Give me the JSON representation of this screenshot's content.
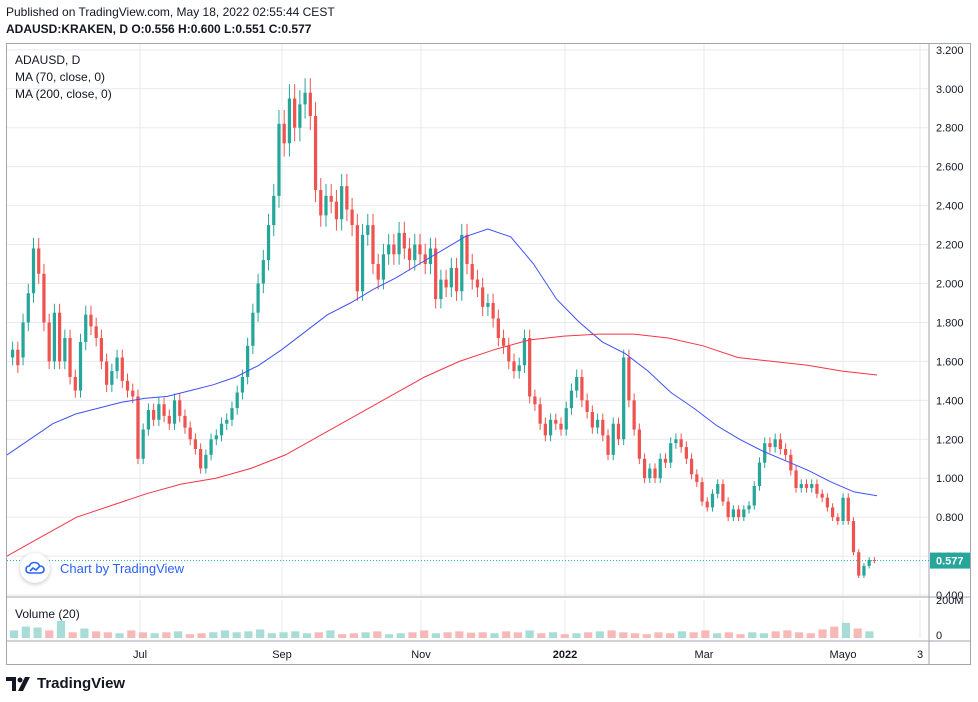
{
  "header": {
    "published": "Published on TradingView.com, May 18, 2022 02:55:44 CEST",
    "ohlc": "ADAUSD:KRAKEN, D O:0.556 H:0.600 L:0.551 C:0.577"
  },
  "legend": {
    "symbol": "ADAUSD, D",
    "ma70": "MA (70, close, 0)",
    "ma200": "MA (200, close, 0)"
  },
  "volume_pane": {
    "label": "Volume (20)",
    "axis_top": "200M",
    "axis_bottom": "0"
  },
  "watermark": {
    "text": "Chart by TradingView"
  },
  "footer": {
    "brand": "TradingView"
  },
  "colors": {
    "up": "#26a69a",
    "down": "#ef5350",
    "ma70": "#3f51f5",
    "ma200": "#f23645",
    "price_tag": "#26a69a"
  },
  "chart_data": {
    "type": "candlestick",
    "symbol": "ADAUSD",
    "interval": "D",
    "y_axis": {
      "ticks": [
        "0.400",
        "0.600",
        "0.800",
        "1.000",
        "1.200",
        "1.400",
        "1.600",
        "1.800",
        "2.000",
        "2.200",
        "2.400",
        "2.600",
        "2.800",
        "3.000",
        "3.200"
      ],
      "range": [
        0.39,
        3.23
      ]
    },
    "x_axis": {
      "ticks": [
        "Jul",
        "Sep",
        "Nov",
        "2022",
        "Mar",
        "Mayo",
        "3"
      ]
    },
    "last_price": {
      "label": "0.577",
      "value": 0.577
    },
    "candles": [
      [
        1.62,
        1.66
      ],
      [
        1.66,
        1.58
      ],
      [
        1.62,
        1.8
      ],
      [
        1.8,
        1.95
      ],
      [
        1.95,
        2.18
      ],
      [
        2.18,
        2.05
      ],
      [
        2.05,
        1.8
      ],
      [
        1.8,
        1.6
      ],
      [
        1.6,
        1.85
      ],
      [
        1.85,
        1.6
      ],
      [
        1.6,
        1.72
      ],
      [
        1.72,
        1.52
      ],
      [
        1.52,
        1.45
      ],
      [
        1.45,
        1.7
      ],
      [
        1.7,
        1.84
      ],
      [
        1.84,
        1.78
      ],
      [
        1.78,
        1.72
      ],
      [
        1.72,
        1.6
      ],
      [
        1.6,
        1.48
      ],
      [
        1.48,
        1.55
      ],
      [
        1.55,
        1.62
      ],
      [
        1.62,
        1.5
      ],
      [
        1.5,
        1.45
      ],
      [
        1.45,
        1.42
      ],
      [
        1.42,
        1.1
      ],
      [
        1.1,
        1.25
      ],
      [
        1.25,
        1.35
      ],
      [
        1.35,
        1.3
      ],
      [
        1.3,
        1.38
      ],
      [
        1.38,
        1.32
      ],
      [
        1.32,
        1.28
      ],
      [
        1.28,
        1.4
      ],
      [
        1.4,
        1.32
      ],
      [
        1.32,
        1.26
      ],
      [
        1.26,
        1.2
      ],
      [
        1.2,
        1.15
      ],
      [
        1.15,
        1.05
      ],
      [
        1.05,
        1.12
      ],
      [
        1.12,
        1.2
      ],
      [
        1.2,
        1.22
      ],
      [
        1.22,
        1.28
      ],
      [
        1.28,
        1.3
      ],
      [
        1.3,
        1.36
      ],
      [
        1.36,
        1.44
      ],
      [
        1.44,
        1.52
      ],
      [
        1.52,
        1.68
      ],
      [
        1.68,
        1.85
      ],
      [
        1.85,
        2.0
      ],
      [
        2.0,
        2.12
      ],
      [
        2.12,
        2.3
      ],
      [
        2.3,
        2.45
      ],
      [
        2.45,
        2.82
      ],
      [
        2.82,
        2.72
      ],
      [
        2.72,
        2.95
      ],
      [
        2.95,
        2.8
      ],
      [
        2.8,
        2.92
      ],
      [
        2.92,
        2.98
      ],
      [
        2.98,
        2.86
      ],
      [
        2.86,
        2.48
      ],
      [
        2.48,
        2.35
      ],
      [
        2.35,
        2.45
      ],
      [
        2.45,
        2.42
      ],
      [
        2.42,
        2.33
      ],
      [
        2.33,
        2.5
      ],
      [
        2.5,
        2.38
      ],
      [
        2.38,
        2.3
      ],
      [
        2.3,
        1.96
      ],
      [
        1.96,
        2.25
      ],
      [
        2.25,
        2.3
      ],
      [
        2.3,
        2.1
      ],
      [
        2.1,
        2.02
      ],
      [
        2.02,
        2.15
      ],
      [
        2.15,
        2.2
      ],
      [
        2.2,
        2.15
      ],
      [
        2.15,
        2.26
      ],
      [
        2.26,
        2.18
      ],
      [
        2.18,
        2.12
      ],
      [
        2.12,
        2.2
      ],
      [
        2.2,
        2.15
      ],
      [
        2.15,
        2.1
      ],
      [
        2.1,
        2.18
      ],
      [
        2.18,
        1.92
      ],
      [
        1.92,
        2.02
      ],
      [
        2.02,
        1.98
      ],
      [
        1.98,
        2.08
      ],
      [
        2.08,
        1.96
      ],
      [
        1.96,
        2.25
      ],
      [
        2.25,
        2.1
      ],
      [
        2.1,
        2.02
      ],
      [
        2.02,
        1.98
      ],
      [
        1.98,
        1.88
      ],
      [
        1.88,
        1.9
      ],
      [
        1.9,
        1.82
      ],
      [
        1.82,
        1.72
      ],
      [
        1.72,
        1.68
      ],
      [
        1.68,
        1.6
      ],
      [
        1.6,
        1.55
      ],
      [
        1.55,
        1.58
      ],
      [
        1.58,
        1.72
      ],
      [
        1.72,
        1.42
      ],
      [
        1.42,
        1.38
      ],
      [
        1.38,
        1.28
      ],
      [
        1.28,
        1.22
      ],
      [
        1.22,
        1.3
      ],
      [
        1.3,
        1.28
      ],
      [
        1.28,
        1.25
      ],
      [
        1.25,
        1.36
      ],
      [
        1.36,
        1.45
      ],
      [
        1.45,
        1.52
      ],
      [
        1.52,
        1.4
      ],
      [
        1.4,
        1.34
      ],
      [
        1.34,
        1.26
      ],
      [
        1.26,
        1.3
      ],
      [
        1.3,
        1.22
      ],
      [
        1.22,
        1.12
      ],
      [
        1.12,
        1.28
      ],
      [
        1.28,
        1.2
      ],
      [
        1.2,
        1.62
      ],
      [
        1.62,
        1.4
      ],
      [
        1.4,
        1.25
      ],
      [
        1.25,
        1.1
      ],
      [
        1.1,
        1.0
      ],
      [
        1.0,
        1.05
      ],
      [
        1.05,
        1.0
      ],
      [
        1.0,
        1.1
      ],
      [
        1.1,
        1.08
      ],
      [
        1.08,
        1.18
      ],
      [
        1.18,
        1.2
      ],
      [
        1.2,
        1.16
      ],
      [
        1.16,
        1.1
      ],
      [
        1.1,
        1.02
      ],
      [
        1.02,
        0.98
      ],
      [
        0.98,
        0.88
      ],
      [
        0.88,
        0.85
      ],
      [
        0.85,
        0.92
      ],
      [
        0.92,
        0.97
      ],
      [
        0.97,
        0.88
      ],
      [
        0.88,
        0.8
      ],
      [
        0.8,
        0.84
      ],
      [
        0.84,
        0.8
      ],
      [
        0.8,
        0.84
      ],
      [
        0.84,
        0.86
      ],
      [
        0.86,
        0.96
      ],
      [
        0.96,
        1.08
      ],
      [
        1.08,
        1.18
      ],
      [
        1.18,
        1.16
      ],
      [
        1.16,
        1.2
      ],
      [
        1.2,
        1.15
      ],
      [
        1.15,
        1.12
      ],
      [
        1.12,
        1.04
      ],
      [
        1.04,
        0.95
      ],
      [
        0.95,
        0.97
      ],
      [
        0.97,
        0.95
      ],
      [
        0.95,
        0.97
      ],
      [
        0.97,
        0.92
      ],
      [
        0.92,
        0.9
      ],
      [
        0.9,
        0.85
      ],
      [
        0.85,
        0.8
      ],
      [
        0.8,
        0.78
      ],
      [
        0.78,
        0.9
      ],
      [
        0.9,
        0.78
      ],
      [
        0.78,
        0.62
      ],
      [
        0.62,
        0.5
      ],
      [
        0.5,
        0.55
      ],
      [
        0.55,
        0.58
      ],
      [
        0.58,
        0.577
      ]
    ],
    "ma70": [
      1.12,
      1.2,
      1.28,
      1.33,
      1.36,
      1.39,
      1.41,
      1.42,
      1.45,
      1.48,
      1.52,
      1.58,
      1.66,
      1.75,
      1.84,
      1.9,
      1.97,
      2.03,
      2.1,
      2.17,
      2.24,
      2.28,
      2.24,
      2.1,
      1.92,
      1.8,
      1.7,
      1.64,
      1.55,
      1.44,
      1.36,
      1.27,
      1.2,
      1.14,
      1.09,
      1.04,
      0.98,
      0.93,
      0.91
    ],
    "ma200": [
      0.6,
      0.7,
      0.8,
      0.86,
      0.92,
      0.97,
      1.0,
      1.05,
      1.12,
      1.22,
      1.32,
      1.42,
      1.52,
      1.6,
      1.66,
      1.71,
      1.73,
      1.74,
      1.74,
      1.72,
      1.68,
      1.62,
      1.6,
      1.58,
      1.55,
      1.53
    ],
    "volume": [
      40,
      60,
      55,
      40,
      90,
      30,
      50,
      35,
      30,
      25,
      40,
      30,
      25,
      30,
      35,
      20,
      25,
      30,
      40,
      30,
      35,
      45,
      25,
      30,
      35,
      25,
      30,
      40,
      20,
      25,
      30,
      35,
      20,
      25,
      30,
      40,
      25,
      30,
      35,
      28,
      30,
      25,
      35,
      30,
      40,
      25,
      30,
      20,
      25,
      30,
      35,
      40,
      30,
      25,
      20,
      30,
      25,
      35,
      30,
      40,
      25,
      30,
      20,
      30,
      25,
      35,
      40,
      30,
      25,
      45,
      60,
      80,
      50,
      35
    ]
  }
}
